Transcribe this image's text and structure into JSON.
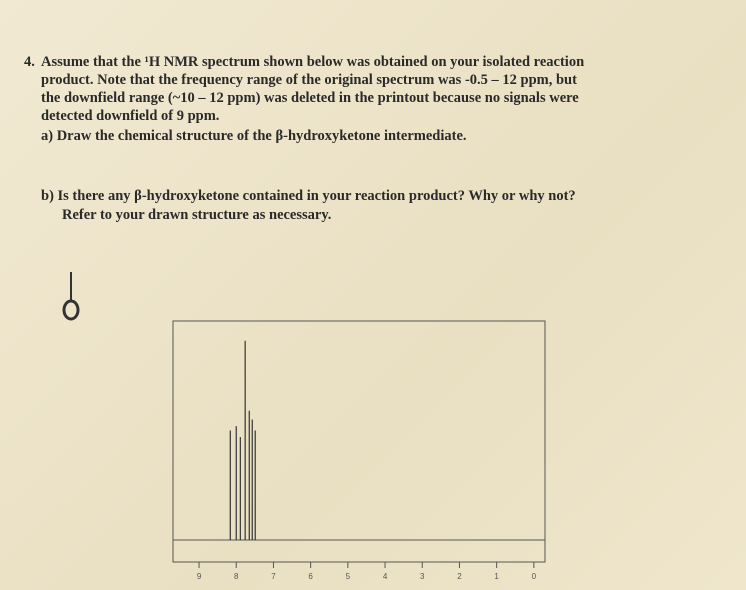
{
  "question": {
    "number": "4.",
    "lines": [
      "Assume that the ¹H NMR spectrum shown below was obtained on your isolated reaction",
      "product. Note that the frequency range of the original spectrum was -0.5 – 12 ppm, but",
      "the downfield range (~10 – 12 ppm) was deleted in the printout because no signals were",
      "detected downfield of 9 ppm."
    ],
    "part_a": "a) Draw the chemical structure of the β-hydroxyketone intermediate.",
    "part_b": [
      "b) Is there any β-hydroxyketone contained in your reaction product? Why or why not?",
      "Refer to your drawn structure as necessary."
    ]
  },
  "chart_data": {
    "type": "stem",
    "x": [
      8.16,
      8.0,
      7.89,
      7.76,
      7.65,
      7.57,
      7.49
    ],
    "values": [
      50,
      52,
      47,
      91,
      59,
      55,
      50
    ],
    "color": "#333333",
    "xlim": [
      9.7,
      -0.3
    ],
    "xticks": [
      9,
      8,
      7,
      6,
      5,
      4,
      3,
      2,
      1,
      0
    ],
    "ylim": [
      0,
      100
    ]
  }
}
